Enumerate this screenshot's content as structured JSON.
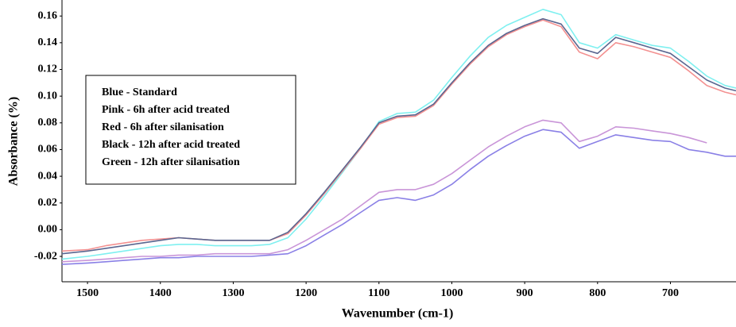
{
  "chart_data": {
    "type": "line",
    "xlabel": "Wavenumber (cm-1)",
    "ylabel": "Absorbance (%)",
    "annotations": [
      "Blue - Standard",
      "Pink - 6h after acid treated",
      "Red - 6h after silanisation",
      "Black - 12h after acid treated",
      "Green - 12h after silanisation"
    ],
    "xlim": [
      1535,
      610
    ],
    "ylim": [
      -0.039,
      0.172
    ],
    "xticks": [
      1500,
      1400,
      1300,
      1200,
      1100,
      1000,
      900,
      800,
      700
    ],
    "yticks": [
      -0.02,
      {
        "value": 0,
        "label": "0.00"
      },
      0.02,
      0.04,
      0.06,
      0.08,
      {
        "value": 0.1,
        "label": "0.10"
      },
      0.12,
      0.14,
      0.16
    ],
    "x": [
      1535,
      1500,
      1475,
      1450,
      1425,
      1400,
      1375,
      1350,
      1325,
      1300,
      1275,
      1250,
      1225,
      1200,
      1175,
      1150,
      1125,
      1100,
      1075,
      1050,
      1025,
      1000,
      975,
      950,
      925,
      900,
      875,
      850,
      825,
      800,
      775,
      750,
      725,
      700,
      675,
      650,
      625,
      610
    ],
    "series": [
      {
        "color": "#7ff0f0",
        "values": [
          -0.022,
          -0.02,
          -0.018,
          -0.016,
          -0.014,
          -0.012,
          -0.011,
          -0.011,
          -0.012,
          -0.012,
          -0.012,
          -0.011,
          -0.006,
          0.008,
          0.025,
          0.043,
          0.061,
          0.081,
          0.087,
          0.088,
          0.097,
          0.114,
          0.13,
          0.144,
          0.153,
          0.159,
          0.165,
          0.161,
          0.14,
          0.136,
          0.146,
          0.142,
          0.138,
          0.136,
          0.126,
          0.115,
          0.108,
          0.106
        ]
      },
      {
        "color": "#f39191",
        "values": [
          -0.016,
          -0.015,
          -0.012,
          -0.01,
          -0.008,
          -0.007,
          -0.006,
          -0.007,
          -0.008,
          -0.008,
          -0.008,
          -0.008,
          -0.003,
          0.011,
          0.027,
          0.044,
          0.061,
          0.079,
          0.084,
          0.085,
          0.093,
          0.109,
          0.124,
          0.137,
          0.146,
          0.152,
          0.157,
          0.152,
          0.133,
          0.128,
          0.14,
          0.137,
          0.133,
          0.129,
          0.119,
          0.108,
          0.103,
          0.101
        ]
      },
      {
        "color": "#5a6690",
        "values": [
          -0.018,
          -0.016,
          -0.014,
          -0.012,
          -0.01,
          -0.008,
          -0.006,
          -0.007,
          -0.008,
          -0.008,
          -0.008,
          -0.008,
          -0.002,
          0.012,
          0.028,
          0.045,
          0.062,
          0.08,
          0.085,
          0.086,
          0.094,
          0.11,
          0.125,
          0.138,
          0.147,
          0.153,
          0.158,
          0.154,
          0.136,
          0.132,
          0.144,
          0.14,
          0.136,
          0.132,
          0.122,
          0.112,
          0.106,
          0.104
        ]
      },
      {
        "color": "#c995d8",
        "values": [
          -0.024,
          -0.023,
          -0.022,
          -0.021,
          -0.02,
          -0.02,
          -0.019,
          -0.019,
          -0.018,
          -0.018,
          -0.018,
          -0.018,
          -0.015,
          -0.008,
          0.0,
          0.008,
          0.018,
          0.028,
          0.03,
          0.03,
          0.034,
          0.042,
          0.052,
          0.062,
          0.07,
          0.077,
          0.082,
          0.08,
          0.066,
          0.07,
          0.077,
          0.076,
          0.074,
          0.072,
          0.069,
          0.065,
          null,
          null
        ]
      },
      {
        "color": "#8a80e6",
        "values": [
          -0.026,
          -0.025,
          -0.024,
          -0.023,
          -0.022,
          -0.021,
          -0.021,
          -0.02,
          -0.02,
          -0.02,
          -0.02,
          -0.019,
          -0.018,
          -0.012,
          -0.004,
          0.004,
          0.013,
          0.022,
          0.024,
          0.022,
          0.026,
          0.034,
          0.045,
          0.055,
          0.063,
          0.07,
          0.075,
          0.073,
          0.061,
          0.066,
          0.071,
          0.069,
          0.067,
          0.066,
          0.06,
          0.058,
          0.055,
          0.055
        ]
      }
    ]
  }
}
